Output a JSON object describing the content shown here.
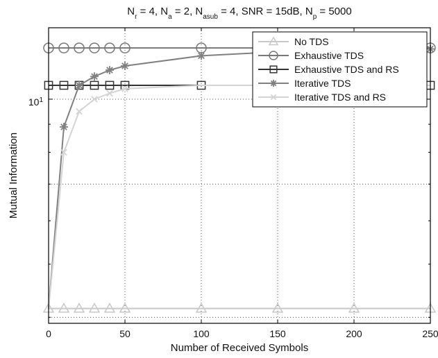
{
  "chart_data": {
    "type": "line",
    "title": {
      "parts": [
        {
          "text": "N"
        },
        {
          "text": "r",
          "sub": true
        },
        {
          "text": " = 4, N"
        },
        {
          "text": "a",
          "sub": true
        },
        {
          "text": " = 2, N"
        },
        {
          "text": "asub",
          "sub": true
        },
        {
          "text": " = 4, SNR = 15dB, N"
        },
        {
          "text": "p",
          "sub": true
        },
        {
          "text": " = 5000"
        }
      ]
    },
    "xlabel": "Number of Received Symbols",
    "ylabel": "Mutual Information",
    "xlim": [
      0,
      250
    ],
    "ylim": [
      3.9,
      13.5
    ],
    "yscale": "log",
    "grid": true,
    "grid_style": "dotted",
    "legend_position": "top-right",
    "x_ticks": [
      {
        "value": 0,
        "label": "0"
      },
      {
        "value": 50,
        "label": "50"
      },
      {
        "value": 100,
        "label": "100"
      },
      {
        "value": 150,
        "label": "150"
      },
      {
        "value": 200,
        "label": "200"
      },
      {
        "value": 250,
        "label": "250"
      }
    ],
    "y_ticks": [
      {
        "value": 4,
        "label": ""
      },
      {
        "value": 5,
        "label": ""
      },
      {
        "value": 6,
        "label": ""
      },
      {
        "value": 7,
        "label": ""
      },
      {
        "value": 8,
        "label": ""
      },
      {
        "value": 9,
        "label": ""
      },
      {
        "value": 10,
        "label": "10",
        "sup": "1"
      }
    ],
    "series": [
      {
        "name": "No TDS",
        "color": "#c8c8c8",
        "marker": "triangle",
        "x": [
          0,
          10,
          20,
          30,
          40,
          50,
          100,
          150,
          200,
          250
        ],
        "y": [
          4.15,
          4.15,
          4.15,
          4.15,
          4.15,
          4.15,
          4.15,
          4.15,
          4.15,
          4.15
        ],
        "marker_x": [
          0,
          10,
          20,
          30,
          40,
          50,
          100,
          150,
          200,
          250
        ]
      },
      {
        "name": "Exhaustive TDS",
        "color": "#777777",
        "marker": "circle",
        "x": [
          0,
          10,
          20,
          30,
          40,
          50,
          100,
          150,
          200,
          250
        ],
        "y": [
          12.4,
          12.4,
          12.4,
          12.4,
          12.4,
          12.4,
          12.4,
          12.4,
          12.4,
          12.4
        ],
        "marker_x": [
          0,
          10,
          20,
          30,
          40,
          50,
          100,
          150,
          200,
          250
        ]
      },
      {
        "name": "Exhaustive TDS and RS",
        "color": "#333333",
        "marker": "square",
        "x": [
          0,
          10,
          20,
          30,
          40,
          50,
          100,
          150,
          200,
          250
        ],
        "y": [
          10.6,
          10.6,
          10.6,
          10.6,
          10.6,
          10.6,
          10.6,
          10.6,
          10.6,
          10.6
        ],
        "marker_x": [
          0,
          10,
          20,
          30,
          40,
          50,
          100,
          150,
          200,
          250
        ]
      },
      {
        "name": "Iterative TDS",
        "color": "#808080",
        "marker": "asterisk",
        "x": [
          0,
          10,
          20,
          30,
          40,
          50,
          100,
          150,
          200,
          250
        ],
        "y": [
          4.15,
          8.9,
          10.6,
          11.0,
          11.3,
          11.5,
          12.0,
          12.2,
          12.3,
          12.35
        ],
        "marker_x": [
          10,
          20,
          30,
          40,
          50,
          100,
          150,
          200,
          250
        ]
      },
      {
        "name": "Iterative TDS and RS",
        "color": "#d4d4d4",
        "marker": "cross",
        "x": [
          0,
          10,
          20,
          30,
          40,
          50,
          100,
          150,
          200,
          250
        ],
        "y": [
          4.15,
          8.0,
          9.5,
          10.0,
          10.25,
          10.45,
          10.6,
          10.6,
          10.6,
          10.6
        ],
        "marker_x": [
          10,
          20,
          30,
          40,
          50
        ]
      }
    ]
  }
}
